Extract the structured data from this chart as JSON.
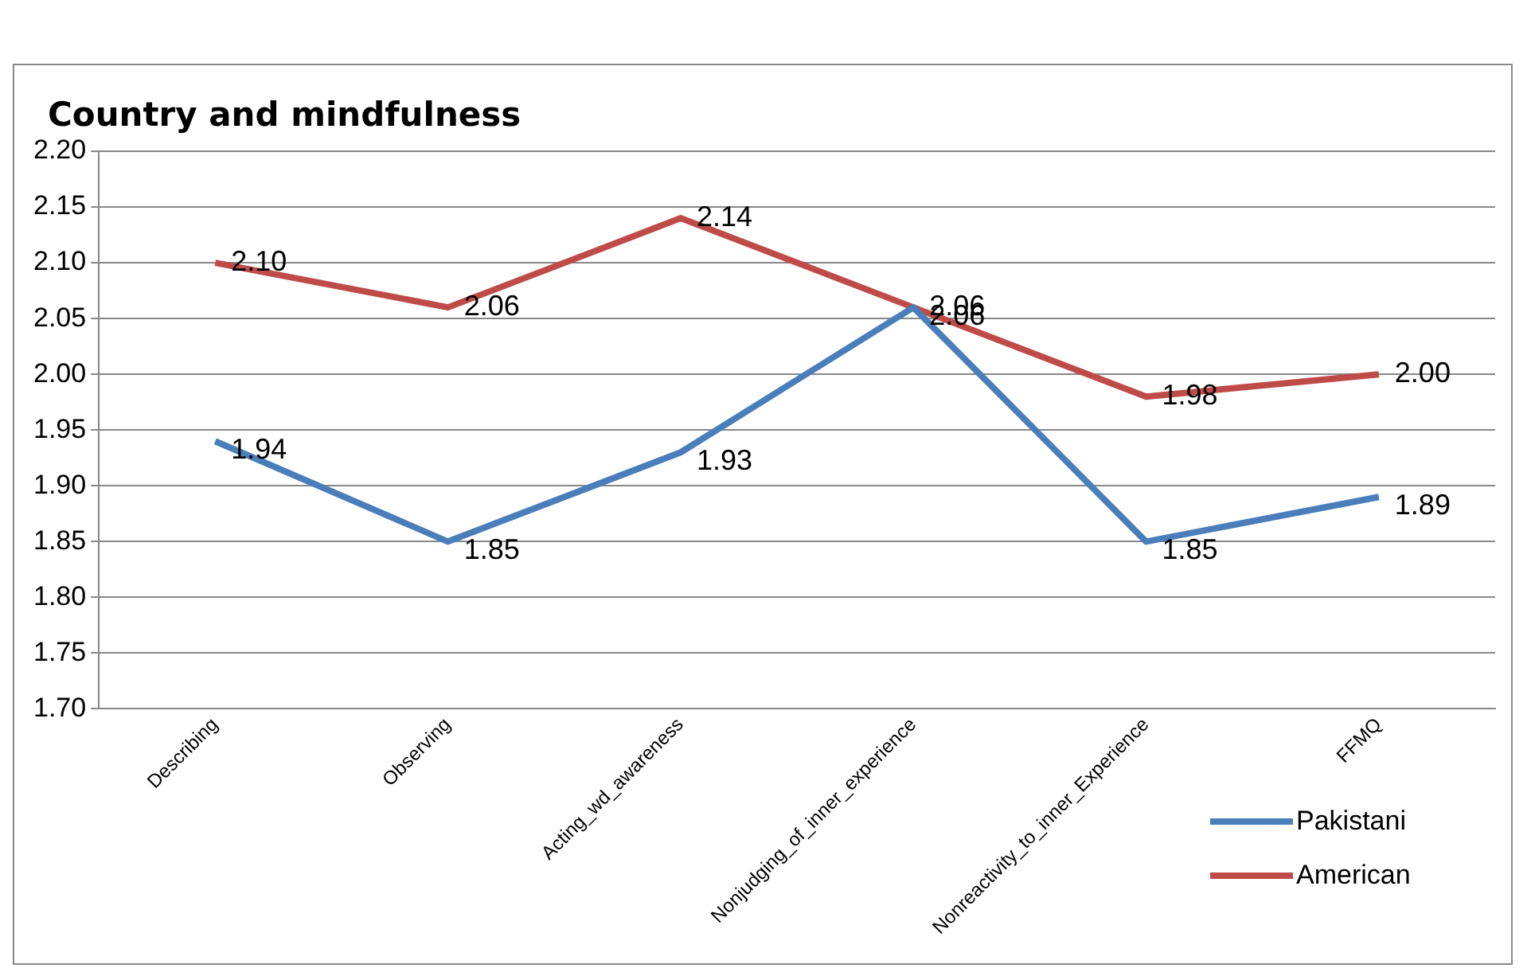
{
  "chart_data": {
    "type": "line",
    "title": "Country and mindfulness",
    "categories": [
      "Describing",
      "Observing",
      "Acting_wd_awareness",
      "Nonjudging_of_inner_experience",
      "Nonreactivity_to_inner_Experience",
      "FFMQ"
    ],
    "series": [
      {
        "name": "Pakistani",
        "color": "#4a7ebb",
        "values": [
          1.94,
          1.85,
          1.93,
          2.06,
          1.85,
          1.89
        ],
        "value_labels": [
          "1.94",
          "1.85",
          "1.93",
          "2.06",
          "1.85",
          "1.89"
        ]
      },
      {
        "name": "American",
        "color": "#be4b48",
        "values": [
          2.1,
          2.06,
          2.14,
          2.06,
          1.98,
          2.0
        ],
        "value_labels": [
          "2.10",
          "2.06",
          "2.14",
          "2.06",
          "1.98",
          "2.00"
        ]
      }
    ],
    "ylim": [
      1.7,
      2.2
    ],
    "yticks": [
      {
        "value": 1.7,
        "label": "1.70"
      },
      {
        "value": 1.75,
        "label": "1.75"
      },
      {
        "value": 1.8,
        "label": "1.80"
      },
      {
        "value": 1.85,
        "label": "1.85"
      },
      {
        "value": 1.9,
        "label": "1.90"
      },
      {
        "value": 1.95,
        "label": "1.95"
      },
      {
        "value": 2.0,
        "label": "2.00"
      },
      {
        "value": 2.05,
        "label": "2.05"
      },
      {
        "value": 2.1,
        "label": "2.10"
      },
      {
        "value": 2.15,
        "label": "2.15"
      },
      {
        "value": 2.2,
        "label": "2.20"
      }
    ],
    "grid": "y",
    "legend": "bottom right",
    "marker": "none",
    "line_style": "solid"
  }
}
